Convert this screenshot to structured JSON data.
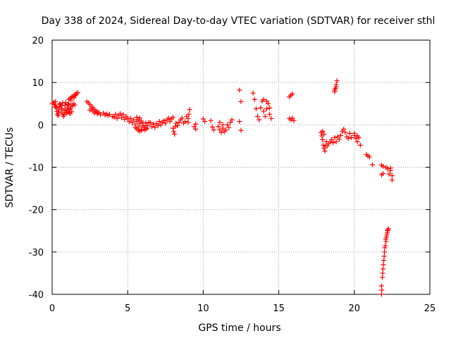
{
  "chart_data": {
    "type": "scatter",
    "title": "Day 338 of 2024, Sidereal Day-to-day VTEC variation (SDTVAR) for receiver sthl",
    "xlabel": "GPS time / hours",
    "ylabel": "SDTVAR / TECUs",
    "xlim": [
      0,
      25
    ],
    "ylim": [
      -40,
      20
    ],
    "x_ticks": [
      0,
      5,
      10,
      15,
      20,
      25
    ],
    "y_ticks": [
      -40,
      -30,
      -20,
      -10,
      0,
      10,
      20
    ],
    "grid": true,
    "marker": "+",
    "series_color": "#ff0000",
    "series": [
      {
        "name": "SDTVAR",
        "points": [
          [
            0.0,
            5.0
          ],
          [
            0.1,
            5.3
          ],
          [
            0.15,
            4.8
          ],
          [
            0.2,
            5.5
          ],
          [
            0.25,
            4.5
          ],
          [
            0.3,
            4.0
          ],
          [
            0.3,
            3.2
          ],
          [
            0.35,
            2.5
          ],
          [
            0.4,
            2.2
          ],
          [
            0.45,
            3.0
          ],
          [
            0.5,
            4.2
          ],
          [
            0.55,
            4.8
          ],
          [
            0.6,
            4.5
          ],
          [
            0.65,
            3.8
          ],
          [
            0.7,
            2.6
          ],
          [
            0.75,
            2.0
          ],
          [
            0.8,
            3.5
          ],
          [
            0.85,
            4.6
          ],
          [
            0.9,
            3.4
          ],
          [
            0.95,
            2.8
          ],
          [
            1.0,
            4.0
          ],
          [
            1.05,
            4.8
          ],
          [
            1.1,
            3.6
          ],
          [
            1.15,
            2.9
          ],
          [
            1.2,
            3.8
          ],
          [
            1.25,
            4.4
          ],
          [
            1.3,
            3.1
          ],
          [
            1.35,
            4.5
          ],
          [
            1.4,
            5.0
          ],
          [
            1.5,
            4.7
          ],
          [
            0.5,
            5.0
          ],
          [
            0.7,
            5.2
          ],
          [
            0.9,
            5.3
          ],
          [
            1.1,
            5.0
          ],
          [
            0.2,
            4.2
          ],
          [
            0.4,
            3.6
          ],
          [
            0.6,
            3.0
          ],
          [
            0.8,
            2.4
          ],
          [
            1.0,
            3.0
          ],
          [
            1.2,
            2.6
          ],
          [
            1.1,
            6.0
          ],
          [
            1.2,
            6.3
          ],
          [
            1.3,
            6.6
          ],
          [
            1.4,
            6.8
          ],
          [
            1.5,
            7.1
          ],
          [
            1.6,
            7.4
          ],
          [
            1.7,
            7.6
          ],
          [
            1.25,
            5.8
          ],
          [
            1.45,
            6.4
          ],
          [
            1.55,
            6.9
          ],
          [
            2.3,
            5.5
          ],
          [
            2.4,
            5.2
          ],
          [
            2.5,
            4.8
          ],
          [
            2.6,
            4.4
          ],
          [
            2.7,
            4.0
          ],
          [
            2.8,
            3.6
          ],
          [
            2.9,
            3.3
          ],
          [
            3.0,
            3.0
          ],
          [
            2.5,
            3.5
          ],
          [
            2.6,
            3.9
          ],
          [
            2.7,
            3.2
          ],
          [
            2.8,
            2.8
          ],
          [
            3.0,
            2.6
          ],
          [
            3.1,
            2.9
          ],
          [
            3.2,
            2.4
          ],
          [
            3.4,
            2.8
          ],
          [
            3.5,
            2.3
          ],
          [
            3.6,
            2.6
          ],
          [
            3.7,
            2.2
          ],
          [
            3.8,
            2.5
          ],
          [
            4.0,
            2.0
          ],
          [
            4.1,
            1.8
          ],
          [
            4.2,
            2.5
          ],
          [
            4.3,
            1.5
          ],
          [
            4.4,
            2.2
          ],
          [
            4.5,
            2.7
          ],
          [
            4.6,
            1.7
          ],
          [
            4.7,
            2.4
          ],
          [
            4.8,
            1.3
          ],
          [
            4.9,
            2.0
          ],
          [
            5.0,
            1.6
          ],
          [
            5.1,
            0.8
          ],
          [
            5.2,
            1.5
          ],
          [
            5.3,
            0.5
          ],
          [
            5.4,
            1.2
          ],
          [
            5.5,
            0.0
          ],
          [
            5.6,
            0.8
          ],
          [
            5.7,
            -0.5
          ],
          [
            5.8,
            0.3
          ],
          [
            5.9,
            -1.0
          ],
          [
            6.0,
            -0.2
          ],
          [
            6.1,
            -1.2
          ],
          [
            6.2,
            0.4
          ],
          [
            6.3,
            -0.8
          ],
          [
            6.4,
            0.6
          ],
          [
            5.6,
            1.8
          ],
          [
            5.7,
            1.2
          ],
          [
            5.8,
            1.6
          ],
          [
            5.9,
            0.9
          ],
          [
            6.0,
            0.5
          ],
          [
            5.5,
            -0.6
          ],
          [
            5.6,
            -0.9
          ],
          [
            5.7,
            -1.3
          ],
          [
            5.8,
            -1.5
          ],
          [
            5.9,
            -1.3
          ],
          [
            6.1,
            -0.5
          ],
          [
            6.2,
            -1.0
          ],
          [
            6.3,
            -0.2
          ],
          [
            6.5,
            0.5
          ],
          [
            6.6,
            -0.4
          ],
          [
            6.7,
            0.2
          ],
          [
            6.8,
            -0.6
          ],
          [
            6.9,
            0.3
          ],
          [
            7.0,
            -0.2
          ],
          [
            7.1,
            0.8
          ],
          [
            7.2,
            0.0
          ],
          [
            7.3,
            0.6
          ],
          [
            7.4,
            1.0
          ],
          [
            7.5,
            0.4
          ],
          [
            7.6,
            1.2
          ],
          [
            7.7,
            1.6
          ],
          [
            7.8,
            0.8
          ],
          [
            7.9,
            1.4
          ],
          [
            8.0,
            1.8
          ],
          [
            8.0,
            -0.8
          ],
          [
            8.05,
            -1.6
          ],
          [
            8.1,
            -2.2
          ],
          [
            8.15,
            -0.4
          ],
          [
            8.2,
            0.4
          ],
          [
            8.3,
            -0.2
          ],
          [
            8.4,
            0.6
          ],
          [
            8.5,
            1.2
          ],
          [
            8.6,
            1.6
          ],
          [
            8.7,
            0.4
          ],
          [
            8.8,
            0.8
          ],
          [
            9.0,
            1.5
          ],
          [
            9.05,
            2.5
          ],
          [
            9.1,
            3.6
          ],
          [
            9.0,
            0.6
          ],
          [
            8.9,
            2.0
          ],
          [
            9.4,
            -0.4
          ],
          [
            9.5,
            -1.0
          ],
          [
            9.5,
            0.2
          ],
          [
            10.0,
            1.4
          ],
          [
            10.1,
            0.8
          ],
          [
            10.5,
            1.0
          ],
          [
            10.6,
            -0.5
          ],
          [
            10.7,
            -1.2
          ],
          [
            11.0,
            -0.4
          ],
          [
            11.1,
            -1.2
          ],
          [
            11.2,
            -1.8
          ],
          [
            11.3,
            -0.8
          ],
          [
            11.4,
            -1.6
          ],
          [
            11.5,
            -1.2
          ],
          [
            11.6,
            0.0
          ],
          [
            11.7,
            -0.6
          ],
          [
            11.8,
            0.6
          ],
          [
            11.9,
            1.2
          ],
          [
            11.1,
            0.6
          ],
          [
            11.3,
            0.0
          ],
          [
            12.4,
            8.2
          ],
          [
            12.5,
            5.5
          ],
          [
            12.4,
            0.8
          ],
          [
            12.5,
            -1.3
          ],
          [
            13.3,
            7.5
          ],
          [
            13.4,
            6.0
          ],
          [
            13.5,
            3.8
          ],
          [
            13.6,
            2.0
          ],
          [
            13.7,
            1.2
          ],
          [
            13.8,
            4.0
          ],
          [
            13.9,
            5.6
          ],
          [
            14.0,
            3.2
          ],
          [
            14.1,
            2.0
          ],
          [
            14.2,
            3.8
          ],
          [
            14.3,
            5.0
          ],
          [
            14.4,
            2.5
          ],
          [
            14.5,
            1.5
          ],
          [
            14.0,
            6.0
          ],
          [
            14.2,
            5.6
          ],
          [
            14.4,
            4.0
          ],
          [
            15.7,
            6.6
          ],
          [
            15.8,
            7.0
          ],
          [
            15.9,
            7.3
          ],
          [
            15.7,
            1.5
          ],
          [
            15.8,
            1.2
          ],
          [
            15.9,
            1.6
          ],
          [
            16.0,
            1.0
          ],
          [
            17.8,
            -1.8
          ],
          [
            17.85,
            -2.6
          ],
          [
            17.9,
            -3.5
          ],
          [
            17.95,
            -4.8
          ],
          [
            18.0,
            -5.5
          ],
          [
            18.05,
            -6.2
          ],
          [
            18.1,
            -5.0
          ],
          [
            18.15,
            -4.0
          ],
          [
            18.0,
            -2.2
          ],
          [
            17.9,
            -1.5
          ],
          [
            18.2,
            -5.0
          ],
          [
            18.3,
            -4.5
          ],
          [
            18.4,
            -4.0
          ],
          [
            18.5,
            -3.5
          ],
          [
            18.6,
            -4.2
          ],
          [
            18.7,
            -3.0
          ],
          [
            18.8,
            -4.0
          ],
          [
            18.9,
            -2.8
          ],
          [
            19.0,
            -3.4
          ],
          [
            19.1,
            -2.5
          ],
          [
            19.2,
            -1.5
          ],
          [
            19.3,
            -1.0
          ],
          [
            19.4,
            -1.8
          ],
          [
            19.5,
            -2.8
          ],
          [
            19.6,
            -3.2
          ],
          [
            19.7,
            -2.0
          ],
          [
            19.8,
            -3.0
          ],
          [
            20.0,
            -2.5
          ],
          [
            20.1,
            -3.2
          ],
          [
            20.2,
            -4.0
          ],
          [
            20.3,
            -3.0
          ],
          [
            20.4,
            -4.8
          ],
          [
            20.0,
            -2.0
          ],
          [
            20.2,
            -2.6
          ],
          [
            18.7,
            7.8
          ],
          [
            18.75,
            8.6
          ],
          [
            18.8,
            9.5
          ],
          [
            18.85,
            10.4
          ],
          [
            18.7,
            8.2
          ],
          [
            18.8,
            9.0
          ],
          [
            20.8,
            -7.0
          ],
          [
            20.9,
            -7.3
          ],
          [
            21.0,
            -7.6
          ],
          [
            21.2,
            -9.4
          ],
          [
            21.8,
            -9.5
          ],
          [
            21.9,
            -9.8
          ],
          [
            21.8,
            -11.8
          ],
          [
            21.9,
            -11.5
          ],
          [
            22.1,
            -10.0
          ],
          [
            22.2,
            -10.4
          ],
          [
            22.3,
            -11.6
          ],
          [
            22.4,
            -10.2
          ],
          [
            22.5,
            -12.0
          ],
          [
            22.5,
            -13.0
          ],
          [
            22.4,
            -10.8
          ],
          [
            21.8,
            -38.0
          ],
          [
            21.85,
            -36.0
          ],
          [
            21.9,
            -34.0
          ],
          [
            21.95,
            -32.0
          ],
          [
            22.0,
            -30.0
          ],
          [
            22.05,
            -28.5
          ],
          [
            22.1,
            -27.5
          ],
          [
            22.15,
            -26.0
          ],
          [
            22.2,
            -25.0
          ],
          [
            22.25,
            -24.5
          ],
          [
            21.8,
            -40.0
          ],
          [
            21.82,
            -39.0
          ],
          [
            21.88,
            -35.0
          ],
          [
            21.92,
            -33.0
          ],
          [
            21.98,
            -31.0
          ],
          [
            22.02,
            -29.0
          ],
          [
            22.08,
            -27.0
          ],
          [
            22.12,
            -26.5
          ],
          [
            22.18,
            -25.5
          ],
          [
            22.22,
            -24.8
          ]
        ]
      }
    ]
  }
}
